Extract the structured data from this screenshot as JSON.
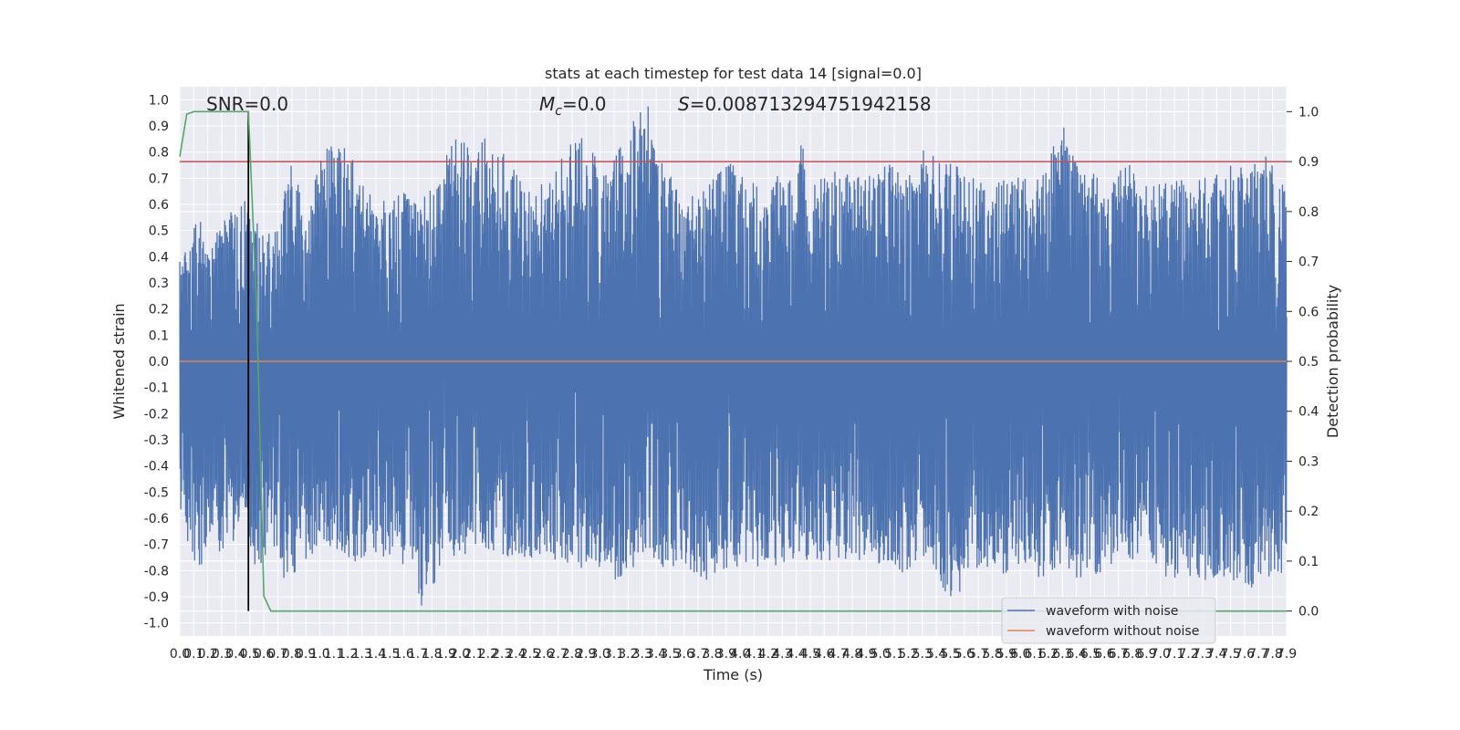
{
  "chart_data": {
    "type": "line",
    "title": "stats at each timestep for test data 14 [signal=0.0]",
    "xlabel": "Time (s)",
    "ylabel": "Whitened strain",
    "ylabel_right": "Detection probability",
    "xlim": [
      0.0,
      7.9
    ],
    "ylim": [
      -1.05,
      1.05
    ],
    "ylim_right": [
      -0.05,
      1.05
    ],
    "x_tick_labels": [
      "0.0",
      "0.1",
      "0.2",
      "0.3",
      "0.4",
      "0.5",
      "0.6",
      "0.7",
      "0.8",
      "0.9",
      "1.0",
      "1.1",
      "1.2",
      "1.3",
      "1.4",
      "1.5",
      "1.6",
      "1.7",
      "1.8",
      "1.9",
      "2.0",
      "2.1",
      "2.2",
      "2.3",
      "2.4",
      "2.5",
      "2.6",
      "2.7",
      "2.8",
      "2.9",
      "3.0",
      "3.1",
      "3.2",
      "3.3",
      "3.4",
      "3.5",
      "3.6",
      "3.7",
      "3.8",
      "3.9",
      "4.0",
      "4.1",
      "4.2",
      "4.3",
      "4.4",
      "4.5",
      "4.6",
      "4.7",
      "4.8",
      "4.9",
      "5.0",
      "5.1",
      "5.2",
      "5.3",
      "5.4",
      "5.5",
      "5.6",
      "5.7",
      "5.8",
      "5.9",
      "6.0",
      "6.1",
      "6.2",
      "6.3",
      "6.4",
      "6.5",
      "6.6",
      "6.7",
      "6.8",
      "6.9",
      "7.0",
      "7.1",
      "7.2",
      "7.3",
      "7.4",
      "7.5",
      "7.6",
      "7.7",
      "7.8",
      "7.9"
    ],
    "y_tick_labels": [
      "1.0",
      "0.9",
      "0.8",
      "0.7",
      "0.6",
      "0.5",
      "0.4",
      "0.3",
      "0.2",
      "0.1",
      "0.0",
      "-0.1",
      "-0.2",
      "-0.3",
      "-0.4",
      "-0.5",
      "-0.6",
      "-0.7",
      "-0.8",
      "-0.9",
      "-1.0"
    ],
    "y_right_tick_labels": [
      "1.0",
      "0.9",
      "0.8",
      "0.7",
      "0.6",
      "0.5",
      "0.4",
      "0.3",
      "0.2",
      "0.1",
      "0.0"
    ],
    "annotations": {
      "snr": "SNR=0.0",
      "mc_symbol": "M",
      "mc_sub": "c",
      "mc_value": "=0.0",
      "s_symbol": "S",
      "s_value": "=0.008713294751942158"
    },
    "threshold": 0.9,
    "marker_time": 0.49,
    "series": [
      {
        "name": "waveform with noise",
        "color": "#4c72b0",
        "envelope_peaks": {
          "x": [
            0.0,
            0.05,
            0.13,
            0.2,
            0.26,
            0.35,
            0.44,
            0.48,
            0.5,
            0.58,
            0.67,
            0.72,
            0.8,
            0.9,
            1.02,
            1.15,
            1.25,
            1.4,
            1.6,
            1.7,
            1.85,
            1.95,
            2.08,
            2.2,
            2.3,
            2.47,
            2.6,
            2.83,
            2.92,
            3.07,
            3.15,
            3.33,
            3.45,
            3.6,
            3.75,
            3.9,
            4.05,
            4.2,
            4.37,
            4.45,
            4.5,
            4.6,
            4.75,
            4.9,
            5.05,
            5.2,
            5.3,
            5.55,
            5.65,
            5.8,
            6.0,
            6.1,
            6.3,
            6.4,
            6.6,
            6.75,
            6.9,
            7.05,
            7.2,
            7.35,
            7.5,
            7.64,
            7.73,
            7.85,
            7.9
          ],
          "max": [
            0.47,
            0.43,
            0.61,
            0.42,
            0.52,
            0.56,
            0.62,
            0.76,
            0.55,
            0.52,
            0.49,
            0.58,
            0.8,
            0.52,
            0.83,
            0.84,
            0.81,
            0.6,
            0.68,
            0.63,
            0.68,
            0.89,
            0.83,
            0.88,
            0.81,
            0.66,
            0.69,
            0.87,
            0.86,
            0.73,
            0.88,
            1.0,
            0.76,
            0.62,
            0.66,
            0.79,
            0.7,
            0.67,
            0.77,
            0.86,
            0.7,
            0.71,
            0.74,
            0.7,
            0.76,
            0.71,
            0.81,
            0.76,
            0.71,
            0.7,
            0.72,
            0.68,
            0.93,
            0.75,
            0.7,
            0.77,
            0.68,
            0.71,
            0.69,
            0.71,
            0.76,
            0.73,
            0.84,
            0.68,
            0.67
          ],
          "min": [
            -0.74,
            -0.73,
            -0.81,
            -0.72,
            -0.73,
            -0.72,
            -0.65,
            -0.56,
            -0.78,
            -0.78,
            -0.7,
            -0.83,
            -0.85,
            -0.79,
            -0.7,
            -0.74,
            -0.77,
            -0.75,
            -0.8,
            -0.96,
            -0.86,
            -0.76,
            -0.73,
            -0.72,
            -0.75,
            -0.76,
            -0.74,
            -0.8,
            -0.78,
            -0.82,
            -0.86,
            -0.71,
            -0.8,
            -0.78,
            -0.84,
            -0.82,
            -0.78,
            -0.79,
            -0.76,
            -0.77,
            -0.75,
            -0.77,
            -0.76,
            -0.78,
            -0.8,
            -0.81,
            -0.77,
            -0.94,
            -0.79,
            -0.82,
            -0.8,
            -0.84,
            -0.81,
            -0.83,
            -0.81,
            -0.76,
            -0.79,
            -0.83,
            -0.83,
            -0.84,
            -0.85,
            -0.88,
            -0.82,
            -0.84,
            -0.82
          ]
        }
      },
      {
        "name": "waveform without noise",
        "color": "#dd8452",
        "x": [
          0.0,
          7.9
        ],
        "y": [
          0.0,
          0.0
        ]
      },
      {
        "name": "",
        "axis": "right",
        "color": "#55a868",
        "x": [
          0.0,
          0.05,
          0.1,
          0.45,
          0.49,
          0.55,
          0.6,
          0.65,
          7.9
        ],
        "y": [
          0.91,
          0.995,
          1.0,
          1.0,
          1.0,
          0.6,
          0.03,
          0.0,
          0.0
        ]
      }
    ],
    "threshold_color": "#c44e52",
    "marker_color": "#000000",
    "grid": true,
    "background": "#eaeaf2",
    "legend_position": "lower-right",
    "legend_entries": [
      {
        "label": "waveform with noise",
        "color": "#4c72b0"
      },
      {
        "label": "waveform without noise",
        "color": "#dd8452"
      }
    ]
  }
}
